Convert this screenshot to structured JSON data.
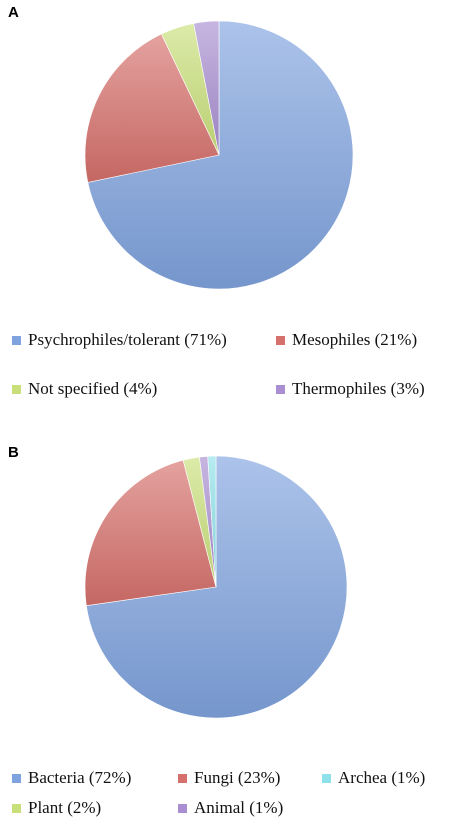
{
  "chart_data": [
    {
      "type": "pie",
      "panel_label": "A",
      "title": "",
      "legend_placement": "bottom",
      "slices": [
        {
          "label": "Psychrophiles/tolerant (71%)",
          "value": 71,
          "color": "#7FA3DE"
        },
        {
          "label": "Mesophiles (21%)",
          "value": 21,
          "color": "#D6706C"
        },
        {
          "label": "Not specified (4%)",
          "value": 4,
          "color": "#C9E07A"
        },
        {
          "label": "Thermophiles (3%)",
          "value": 3,
          "color": "#A98ED1"
        }
      ]
    },
    {
      "type": "pie",
      "panel_label": "B",
      "title": "",
      "legend_placement": "bottom",
      "slices": [
        {
          "label": "Bacteria (72%)",
          "value": 72,
          "color": "#7FA3DE"
        },
        {
          "label": "Fungi (23%)",
          "value": 23,
          "color": "#D6706C"
        },
        {
          "label": "Plant (2%)",
          "value": 2,
          "color": "#C9E07A"
        },
        {
          "label": "Animal (1%)",
          "value": 1,
          "color": "#A98ED1"
        },
        {
          "label": "Archea (1%)",
          "value": 1,
          "color": "#8EE0EA"
        }
      ]
    }
  ]
}
